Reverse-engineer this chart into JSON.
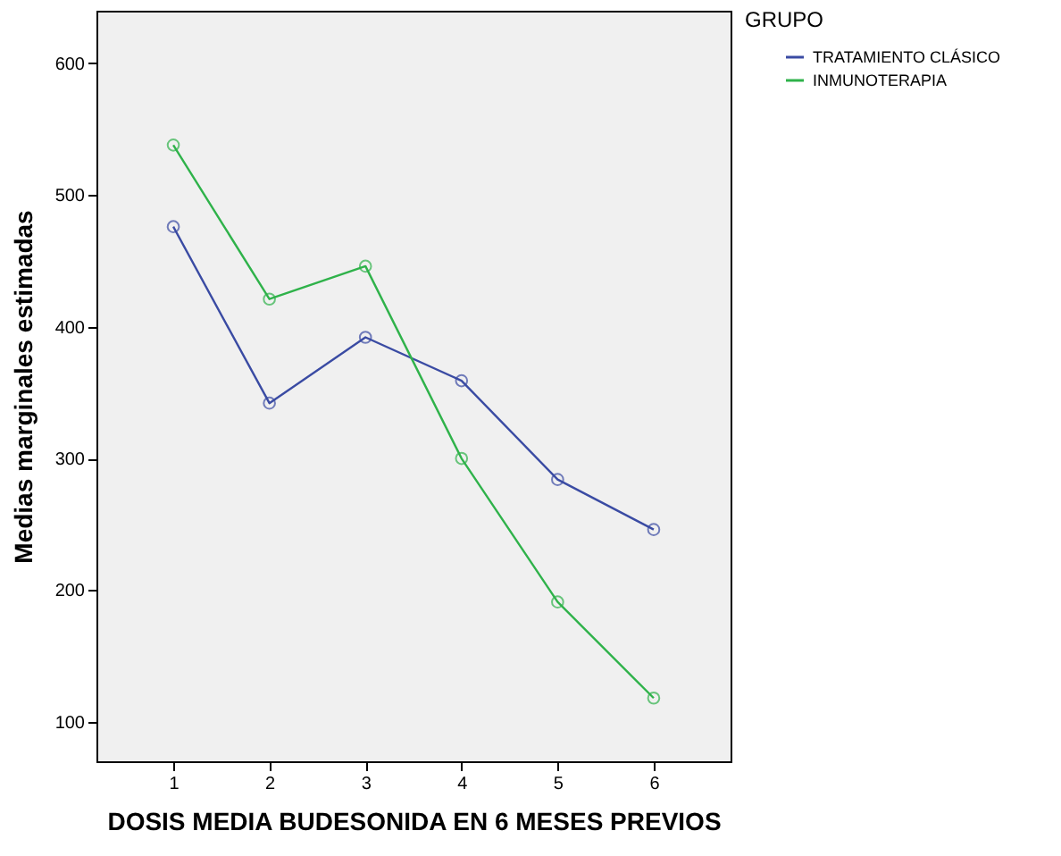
{
  "chart_data": {
    "type": "line",
    "xlabel": "DOSIS MEDIA BUDESONIDA EN 6 MESES PREVIOS",
    "ylabel": "Medias marginales estimadas",
    "legend_title": "GRUPO",
    "x": [
      1,
      2,
      3,
      4,
      5,
      6
    ],
    "series": [
      {
        "name": "TRATAMIENTO CLÁSICO",
        "color": "#3a4ba3",
        "values": [
          476,
          342,
          392,
          359,
          284,
          246
        ]
      },
      {
        "name": "INMUNOTERAPIA",
        "color": "#2fb24a",
        "values": [
          538,
          421,
          446,
          300,
          191,
          118
        ]
      }
    ],
    "xlim": [
      0.2,
      6.8
    ],
    "xticks": [
      1,
      2,
      3,
      4,
      5,
      6
    ],
    "ylim": [
      70,
      640
    ],
    "yticks": [
      100,
      200,
      300,
      400,
      500,
      600
    ],
    "grid": false,
    "legend": "right",
    "marker": "circle",
    "line_style": "solid"
  }
}
